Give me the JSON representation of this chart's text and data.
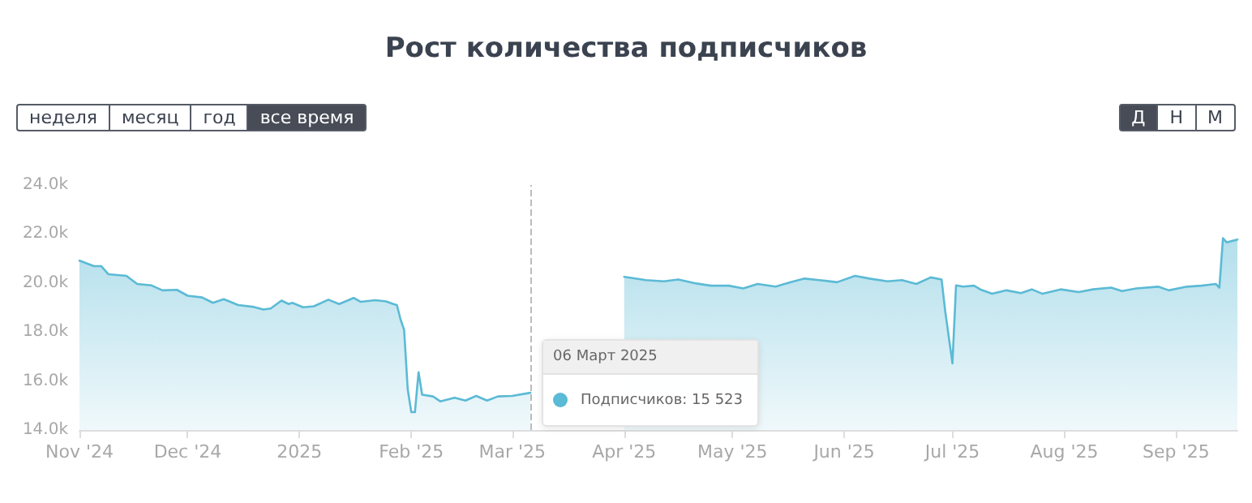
{
  "chart_data": {
    "type": "area",
    "title": "Рост количества подписчиков",
    "x": [
      "2024-11-01",
      "2024-11-05",
      "2024-11-07",
      "2024-11-09",
      "2024-11-14",
      "2024-11-17",
      "2024-11-21",
      "2024-11-24",
      "2024-11-28",
      "2024-12-01",
      "2024-12-05",
      "2024-12-08",
      "2024-12-11",
      "2024-12-15",
      "2024-12-19",
      "2024-12-22",
      "2024-12-24",
      "2024-12-27",
      "2024-12-29",
      "2024-12-30",
      "2025-01-02",
      "2025-01-05",
      "2025-01-09",
      "2025-01-12",
      "2025-01-16",
      "2025-01-18",
      "2025-01-22",
      "2025-01-25",
      "2025-01-27",
      "2025-01-28",
      "2025-01-29",
      "2025-01-30",
      "2025-01-31",
      "2025-02-01",
      "2025-02-02",
      "2025-02-03",
      "2025-02-04",
      "2025-02-07",
      "2025-02-09",
      "2025-02-13",
      "2025-02-16",
      "2025-02-19",
      "2025-02-22",
      "2025-02-25",
      "2025-03-01",
      "2025-03-06",
      "2025-03-20",
      "2025-04-01",
      "2025-04-03",
      "2025-04-07",
      "2025-04-12",
      "2025-04-16",
      "2025-04-21",
      "2025-04-25",
      "2025-04-30",
      "2025-05-04",
      "2025-05-08",
      "2025-05-13",
      "2025-05-17",
      "2025-05-21",
      "2025-05-25",
      "2025-05-30",
      "2025-06-04",
      "2025-06-08",
      "2025-06-13",
      "2025-06-17",
      "2025-06-21",
      "2025-06-25",
      "2025-06-28",
      "2025-06-29",
      "2025-07-01",
      "2025-07-02",
      "2025-07-04",
      "2025-07-07",
      "2025-07-09",
      "2025-07-12",
      "2025-07-16",
      "2025-07-20",
      "2025-07-23",
      "2025-07-26",
      "2025-07-31",
      "2025-08-05",
      "2025-08-09",
      "2025-08-14",
      "2025-08-17",
      "2025-08-21",
      "2025-08-27",
      "2025-08-30",
      "2025-09-04",
      "2025-09-08",
      "2025-09-12",
      "2025-09-13",
      "2025-09-14",
      "2025-09-15",
      "2025-09-18"
    ],
    "series": [
      {
        "color": "#5bbad5",
        "values": [
          20.91,
          20.69,
          20.69,
          20.36,
          20.29,
          19.96,
          19.9,
          19.7,
          19.72,
          19.48,
          19.41,
          19.19,
          19.34,
          19.1,
          19.03,
          18.92,
          18.96,
          19.28,
          19.14,
          19.19,
          19.01,
          19.05,
          19.32,
          19.14,
          19.39,
          19.23,
          19.3,
          19.25,
          19.14,
          19.1,
          18.52,
          18.08,
          15.66,
          14.73,
          14.73,
          16.36,
          15.44,
          15.37,
          15.17,
          15.32,
          15.2,
          15.39,
          15.2,
          15.37,
          15.39,
          15.52,
          null,
          20.25,
          20.21,
          20.12,
          20.07,
          20.14,
          19.98,
          19.89,
          19.89,
          19.78,
          19.96,
          19.85,
          20.03,
          20.18,
          20.12,
          20.03,
          20.29,
          20.18,
          20.07,
          20.12,
          19.96,
          20.23,
          20.14,
          18.85,
          16.72,
          19.9,
          19.85,
          19.89,
          19.72,
          19.56,
          19.7,
          19.59,
          19.74,
          19.56,
          19.74,
          19.63,
          19.74,
          19.81,
          19.67,
          19.78,
          19.85,
          19.7,
          19.85,
          19.89,
          19.96,
          19.81,
          21.83,
          21.66,
          21.77
        ]
      }
    ],
    "xlim": [
      "2024-11-01",
      "2025-09-18"
    ],
    "xticks": [
      {
        "value": "2024-11-01",
        "label": "Nov '24"
      },
      {
        "value": "2024-12-01",
        "label": "Dec '24"
      },
      {
        "value": "2025-01-01",
        "label": "2025"
      },
      {
        "value": "2025-02-01",
        "label": "Feb '25"
      },
      {
        "value": "2025-03-01",
        "label": "Mar '25"
      },
      {
        "value": "2025-04-01",
        "label": "Apr '25"
      },
      {
        "value": "2025-05-01",
        "label": "May '25"
      },
      {
        "value": "2025-06-01",
        "label": "Jun '25"
      },
      {
        "value": "2025-07-01",
        "label": "Jul '25"
      },
      {
        "value": "2025-08-01",
        "label": "Aug '25"
      },
      {
        "value": "2025-09-01",
        "label": "Sep '25"
      }
    ],
    "ylim": [
      14,
      24
    ],
    "yticks": [
      {
        "value": 14,
        "label": "14.0k"
      },
      {
        "value": 16,
        "label": "16.0k"
      },
      {
        "value": 18,
        "label": "18.0k"
      },
      {
        "value": 20,
        "label": "20.0k"
      },
      {
        "value": 22,
        "label": "22.0k"
      },
      {
        "value": 24,
        "label": "24.0k"
      }
    ],
    "ref_lines": [
      {
        "axis": "x",
        "value": "2025-03-06",
        "label": null,
        "color": "#bbbbbb",
        "line_style": "dashed"
      }
    ],
    "annotations": [
      {
        "text": "06 Март 2025",
        "x": "2025-03-06",
        "y": 15.52
      },
      "Подписчиков: 15 523",
      "неделя",
      "месяц",
      "год",
      "все время",
      "Д",
      "Н",
      "М"
    ],
    "grid": false,
    "marker": "none",
    "line_style": "solid"
  }
}
